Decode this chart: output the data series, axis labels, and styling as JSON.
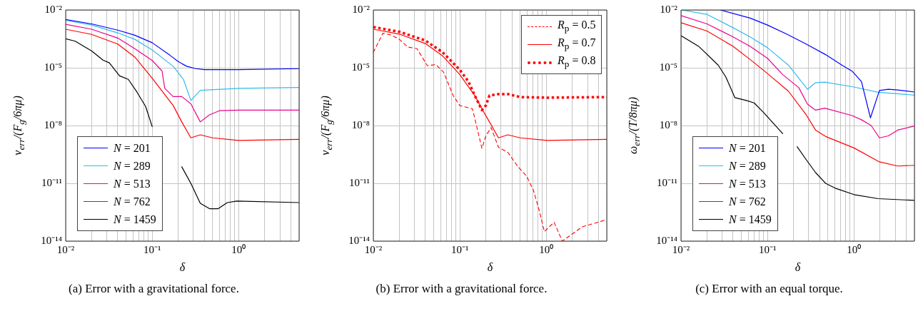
{
  "chart_data": [
    {
      "type": "line",
      "xlabel": "δ",
      "ylabel": "v$_{err}$/(F$_{g}$/6πμ)",
      "annotations": [
        "(a) Error with a gravitational force."
      ],
      "log": "xy",
      "grid": true,
      "legend": "bottom left",
      "xlim": [
        0.01,
        5
      ],
      "ylim": [
        1e-14,
        0.01
      ],
      "xticks": [
        {
          "value": 0.01,
          "label": "10⁻²"
        },
        {
          "value": 0.02,
          "label": null
        },
        {
          "value": 0.03,
          "label": null
        },
        {
          "value": 0.04,
          "label": null
        },
        {
          "value": 0.05,
          "label": null
        },
        {
          "value": 0.06,
          "label": null
        },
        {
          "value": 0.07,
          "label": null
        },
        {
          "value": 0.08,
          "label": null
        },
        {
          "value": 0.09,
          "label": null
        },
        {
          "value": 0.1,
          "label": "10⁻¹"
        },
        {
          "value": 0.2,
          "label": null
        },
        {
          "value": 0.3,
          "label": null
        },
        {
          "value": 0.4,
          "label": null
        },
        {
          "value": 0.5,
          "label": null
        },
        {
          "value": 0.6,
          "label": null
        },
        {
          "value": 0.7,
          "label": null
        },
        {
          "value": 0.8,
          "label": null
        },
        {
          "value": 0.9,
          "label": null
        },
        {
          "value": 1,
          "label": "10⁰"
        },
        {
          "value": 2,
          "label": null
        },
        {
          "value": 3,
          "label": null
        },
        {
          "value": 4,
          "label": null
        },
        {
          "value": 5,
          "label": null
        }
      ],
      "yticks": [
        {
          "value": 1e-14,
          "label": "10⁻¹⁴"
        },
        {
          "value": 1e-11,
          "label": "10⁻¹¹"
        },
        {
          "value": 1e-08,
          "label": "10⁻⁸"
        },
        {
          "value": 1e-05,
          "label": "10⁻⁵"
        },
        {
          "value": 0.01,
          "label": "10⁻²"
        }
      ],
      "series": [
        {
          "name": "N = 201",
          "color": "#0000ff",
          "x": [
            0.01,
            0.02,
            0.04,
            0.063,
            0.1,
            0.16,
            0.2,
            0.25,
            0.32,
            0.4,
            1,
            5
          ],
          "values": [
            0.0032,
            0.0019,
            0.0009,
            0.00049,
            0.0002,
            4.5e-05,
            2.1e-05,
            1.2e-05,
            9e-06,
            8e-06,
            8e-06,
            9e-06
          ]
        },
        {
          "name": "N = 289",
          "color": "#33bbee",
          "x": [
            0.01,
            0.02,
            0.04,
            0.063,
            0.1,
            0.175,
            0.23,
            0.28,
            0.36,
            1,
            5
          ],
          "values": [
            0.0029,
            0.00165,
            0.00065,
            0.0003,
            8.5e-05,
            1.2e-05,
            2.5e-06,
            2e-07,
            6.7e-07,
            8.5e-07,
            9.5e-07
          ]
        },
        {
          "name": "N = 513",
          "color": "#ec008c",
          "x": [
            0.01,
            0.02,
            0.04,
            0.063,
            0.1,
            0.13,
            0.14,
            0.175,
            0.22,
            0.28,
            0.36,
            0.46,
            0.6,
            1,
            5
          ],
          "values": [
            0.0018,
            0.001,
            0.00035,
            9.8e-05,
            2.4e-05,
            6.8e-06,
            8.5e-07,
            3.2e-07,
            3.2e-07,
            1.35e-07,
            1.55e-08,
            3.6e-08,
            5.9e-08,
            6.3e-08,
            6.3e-08
          ]
        },
        {
          "name": "N = 762",
          "color": "#ff0000",
          "x": [
            0.01,
            0.02,
            0.04,
            0.063,
            0.1,
            0.175,
            0.22,
            0.28,
            0.36,
            0.5,
            1,
            5
          ],
          "values": [
            0.001,
            0.00054,
            0.00017,
            3.6e-05,
            2.9e-06,
            1.1e-07,
            1.55e-08,
            2.3e-09,
            3.3e-09,
            2.3e-09,
            1.7e-09,
            1.9e-09
          ]
        },
        {
          "name": "N = 1459",
          "color": "#000000",
          "x": [
            0.01,
            0.0129,
            0.02,
            0.027,
            0.032,
            0.042,
            0.053,
            0.067,
            0.084,
            0.1,
            0.15,
            0.22,
            0.28,
            0.36,
            0.46,
            0.58,
            0.74,
            0.95,
            5
          ],
          "values": [
            0.00032,
            0.00024,
            7.4e-05,
            2.5e-05,
            1.8e-05,
            3.8e-06,
            2.5e-06,
            5.3e-07,
            9.8e-08,
            8.9e-09,
            null,
            7.2e-11,
            1e-11,
            9.1e-13,
            4.8e-13,
            4.8e-13,
            1e-12,
            1.2e-12,
            1e-12
          ]
        }
      ]
    },
    {
      "type": "line",
      "xlabel": "δ",
      "ylabel": "v$_{err}$/(F$_{g}$/6πμ)",
      "annotations": [
        "(b) Error with a gravitational force."
      ],
      "log": "xy",
      "grid": true,
      "legend": "top right",
      "xlim": [
        0.01,
        5
      ],
      "ylim": [
        1e-14,
        0.01
      ],
      "xticks": [
        {
          "value": 0.01,
          "label": "10⁻²"
        },
        {
          "value": 0.02,
          "label": null
        },
        {
          "value": 0.03,
          "label": null
        },
        {
          "value": 0.04,
          "label": null
        },
        {
          "value": 0.05,
          "label": null
        },
        {
          "value": 0.06,
          "label": null
        },
        {
          "value": 0.07,
          "label": null
        },
        {
          "value": 0.08,
          "label": null
        },
        {
          "value": 0.09,
          "label": null
        },
        {
          "value": 0.1,
          "label": "10⁻¹"
        },
        {
          "value": 0.2,
          "label": null
        },
        {
          "value": 0.3,
          "label": null
        },
        {
          "value": 0.4,
          "label": null
        },
        {
          "value": 0.5,
          "label": null
        },
        {
          "value": 0.6,
          "label": null
        },
        {
          "value": 0.7,
          "label": null
        },
        {
          "value": 0.8,
          "label": null
        },
        {
          "value": 0.9,
          "label": null
        },
        {
          "value": 1,
          "label": "10⁰"
        },
        {
          "value": 2,
          "label": null
        },
        {
          "value": 3,
          "label": null
        },
        {
          "value": 4,
          "label": null
        },
        {
          "value": 5,
          "label": null
        }
      ],
      "yticks": [
        {
          "value": 1e-14,
          "label": "10⁻¹⁴"
        },
        {
          "value": 1e-11,
          "label": "10⁻¹¹"
        },
        {
          "value": 1e-08,
          "label": "10⁻⁸"
        },
        {
          "value": 1e-05,
          "label": "10⁻⁵"
        },
        {
          "value": 0.01,
          "label": "10⁻²"
        }
      ],
      "series": [
        {
          "name": "R$_{p}$ = 0.5",
          "color": "#ff0000",
          "line_style": "dashed",
          "x": [
            0.01,
            0.0129,
            0.016,
            0.02,
            0.025,
            0.032,
            0.042,
            0.053,
            0.065,
            0.084,
            0.1,
            0.14,
            0.18,
            0.2,
            0.23,
            0.28,
            0.36,
            0.47,
            0.59,
            0.71,
            0.82,
            0.95,
            1.23,
            1.53,
            1.9,
            2.6,
            5
          ],
          "values": [
            6.4e-05,
            0.00062,
            0.0005,
            0.0003,
            0.00012,
            9.8e-05,
            1.3e-05,
            1.45e-05,
            5.8e-06,
            3.5e-07,
            1.1e-07,
            7.4e-08,
            6.6e-10,
            2.9e-09,
            7.8e-09,
            7.4e-10,
            4e-10,
            7.3e-11,
            2.4e-11,
            4.3e-12,
            4.6e-13,
            3.1e-14,
            9.5e-14,
            1e-14,
            2e-14,
            5.5e-14,
            1.3e-13
          ]
        },
        {
          "name": "R$_{p}$ = 0.7",
          "color": "#ff0000",
          "line_style": "solid",
          "x": [
            0.01,
            0.02,
            0.04,
            0.063,
            0.1,
            0.15,
            0.18,
            0.22,
            0.28,
            0.36,
            0.5,
            1,
            5
          ],
          "values": [
            0.001,
            0.00056,
            0.00018,
            4.2e-05,
            4.4e-06,
            3.4e-07,
            7.4e-08,
            1.55e-08,
            2.3e-09,
            3.3e-09,
            2.3e-09,
            1.7e-09,
            1.9e-09
          ]
        },
        {
          "name": "R$_{p}$ = 0.8",
          "color": "#ff0000",
          "line_style": "dotted",
          "x": [
            0.01,
            0.02,
            0.04,
            0.063,
            0.1,
            0.126,
            0.15,
            0.18,
            0.2,
            0.22,
            0.28,
            0.36,
            0.5,
            1,
            5
          ],
          "values": [
            0.0013,
            0.00074,
            0.00026,
            6.4e-05,
            7.8e-06,
            1.9e-06,
            3.4e-07,
            6.3e-08,
            1.1e-07,
            3.6e-07,
            4.3e-07,
            4.3e-07,
            3e-07,
            2.8e-07,
            3e-07
          ]
        }
      ]
    },
    {
      "type": "line",
      "xlabel": "δ",
      "ylabel": "ω$_{err}$/(T/8πμ)",
      "annotations": [
        "(c) Error with an equal torque."
      ],
      "log": "xy",
      "grid": true,
      "legend": "bottom left",
      "xlim": [
        0.01,
        5
      ],
      "ylim": [
        1e-14,
        0.01
      ],
      "xticks": [
        {
          "value": 0.01,
          "label": "10⁻²"
        },
        {
          "value": 0.02,
          "label": null
        },
        {
          "value": 0.03,
          "label": null
        },
        {
          "value": 0.04,
          "label": null
        },
        {
          "value": 0.05,
          "label": null
        },
        {
          "value": 0.06,
          "label": null
        },
        {
          "value": 0.07,
          "label": null
        },
        {
          "value": 0.08,
          "label": null
        },
        {
          "value": 0.09,
          "label": null
        },
        {
          "value": 0.1,
          "label": "10⁻¹"
        },
        {
          "value": 0.2,
          "label": null
        },
        {
          "value": 0.3,
          "label": null
        },
        {
          "value": 0.4,
          "label": null
        },
        {
          "value": 0.5,
          "label": null
        },
        {
          "value": 0.6,
          "label": null
        },
        {
          "value": 0.7,
          "label": null
        },
        {
          "value": 0.8,
          "label": null
        },
        {
          "value": 0.9,
          "label": null
        },
        {
          "value": 1,
          "label": "10⁰"
        },
        {
          "value": 2,
          "label": null
        },
        {
          "value": 3,
          "label": null
        },
        {
          "value": 4,
          "label": null
        },
        {
          "value": 5,
          "label": null
        }
      ],
      "yticks": [
        {
          "value": 1e-14,
          "label": "10⁻¹⁴"
        },
        {
          "value": 1e-11,
          "label": "10⁻¹¹"
        },
        {
          "value": 1e-08,
          "label": "10⁻⁸"
        },
        {
          "value": 1e-05,
          "label": "10⁻⁵"
        },
        {
          "value": 0.01,
          "label": "10⁻²"
        }
      ],
      "series": [
        {
          "name": "N = 201",
          "color": "#0000ff",
          "x": [
            0.0285,
            0.063,
            0.1,
            0.17,
            0.28,
            0.47,
            0.74,
            0.95,
            1.22,
            1.55,
            1.97,
            2.5,
            3.2,
            5
          ],
          "values": [
            0.01,
            0.0038,
            0.00165,
            0.00054,
            0.00017,
            4.8e-05,
            1.3e-05,
            6.7e-06,
            1.9e-06,
            2.5e-08,
            6.6e-07,
            7.6e-07,
            7e-07,
            5.5e-07
          ]
        },
        {
          "name": "N = 289",
          "color": "#33bbee",
          "x": [
            0.01,
            0.02,
            0.04,
            0.063,
            0.1,
            0.175,
            0.23,
            0.29,
            0.36,
            0.46,
            1,
            1.9,
            5
          ],
          "values": [
            0.01,
            0.0059,
            0.0012,
            0.0004,
            0.00011,
            1.35e-05,
            2.9e-06,
            7.6e-07,
            1.7e-06,
            1.8e-06,
            1e-06,
            5.3e-07,
            3.8e-07
          ]
        },
        {
          "name": "N = 513",
          "color": "#ec008c",
          "x": [
            0.01,
            0.02,
            0.04,
            0.063,
            0.1,
            0.15,
            0.23,
            0.29,
            0.36,
            0.46,
            0.95,
            1.22,
            1.58,
            1.97,
            2.5,
            3.2,
            5
          ],
          "values": [
            0.0051,
            0.0019,
            0.0004,
            0.00013,
            3.1e-05,
            4.4e-06,
            9.3e-07,
            1.3e-07,
            6.3e-08,
            8e-08,
            3.3e-08,
            2e-08,
            1e-08,
            2.3e-09,
            2.9e-09,
            5.8e-09,
            9.5e-09
          ]
        },
        {
          "name": "N = 762",
          "color": "#ff0000",
          "x": [
            0.01,
            0.02,
            0.04,
            0.063,
            0.1,
            0.175,
            0.28,
            0.36,
            0.47,
            1,
            1.97,
            3.2,
            5
          ],
          "values": [
            0.0022,
            0.00081,
            0.00013,
            2.7e-05,
            5e-06,
            6e-07,
            3.6e-08,
            5.8e-09,
            2.7e-09,
            6.9e-10,
            1.3e-10,
            7.9e-11,
            8.6e-11
          ]
        },
        {
          "name": "N = 1459",
          "color": "#000000",
          "x": [
            0.01,
            0.016,
            0.027,
            0.033,
            0.042,
            0.057,
            0.07,
            0.09,
            0.15,
            0.18,
            0.22,
            0.28,
            0.36,
            0.47,
            0.6,
            1,
            1.9,
            5
          ],
          "values": [
            0.00046,
            0.00013,
            1.35e-05,
            3.3e-06,
            2.8e-07,
            2e-07,
            1.5e-07,
            4.8e-08,
            3.8e-09,
            null,
            8e-10,
            1.7e-10,
            3.6e-11,
            1e-11,
            5.7e-12,
            2.6e-12,
            1.6e-12,
            1.3e-12
          ]
        }
      ]
    }
  ]
}
